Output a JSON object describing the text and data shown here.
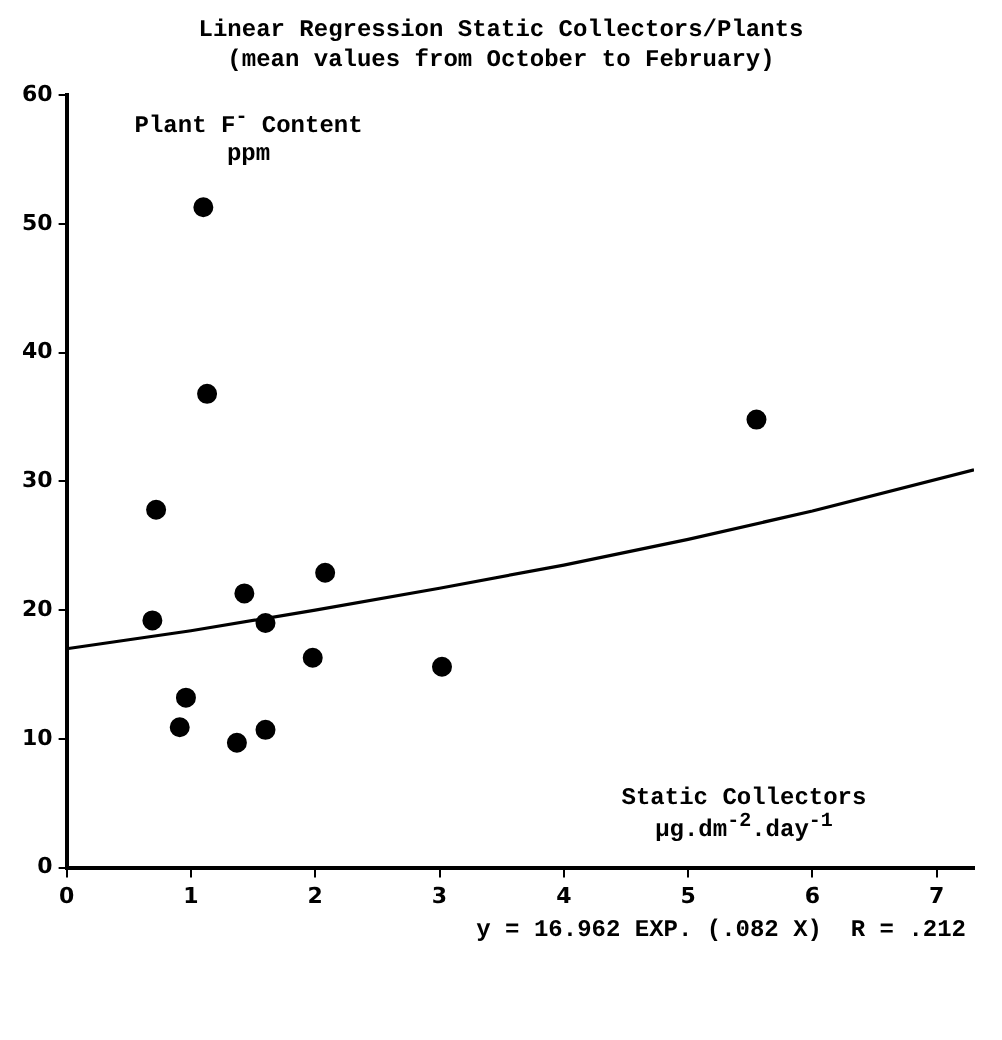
{
  "chart_data": {
    "type": "scatter",
    "title": "Linear Regression Static Collectors/Plants",
    "subtitle": "(mean values from October to February)",
    "xlabel": "Static Collectors µg.dm$^{-2}$.day$^{-1}$",
    "ylabel": "Plant F$^{-}$ Content ppm",
    "annotations": [
      "y = 16.962 EXP. (.082 X)  R = .212"
    ],
    "series": [
      {
        "color": "#000000",
        "marker": "circle",
        "x": [
          0.69,
          0.72,
          0.91,
          0.96,
          1.1,
          1.13,
          1.37,
          1.43,
          1.6,
          1.6,
          1.98,
          2.08,
          3.02,
          5.55
        ],
        "values": [
          19.2,
          27.8,
          10.9,
          13.2,
          51.3,
          36.8,
          9.7,
          21.3,
          19.0,
          10.7,
          16.3,
          22.9,
          15.6,
          34.8
        ]
      },
      {
        "type": "line",
        "color": "#000000",
        "marker": "none",
        "x": [
          0,
          1,
          2,
          3,
          4,
          5,
          6,
          7.3
        ],
        "values": [
          17.0,
          18.4,
          20.0,
          21.7,
          23.5,
          25.5,
          27.7,
          30.9
        ]
      }
    ],
    "xlim": [
      0,
      7.3
    ],
    "xticks": [
      0,
      1,
      2,
      3,
      4,
      5,
      6,
      7
    ],
    "ylim": [
      0,
      60
    ],
    "yticks": [
      0,
      10,
      20,
      30,
      40,
      50,
      60
    ],
    "grid": false,
    "legend": false
  }
}
